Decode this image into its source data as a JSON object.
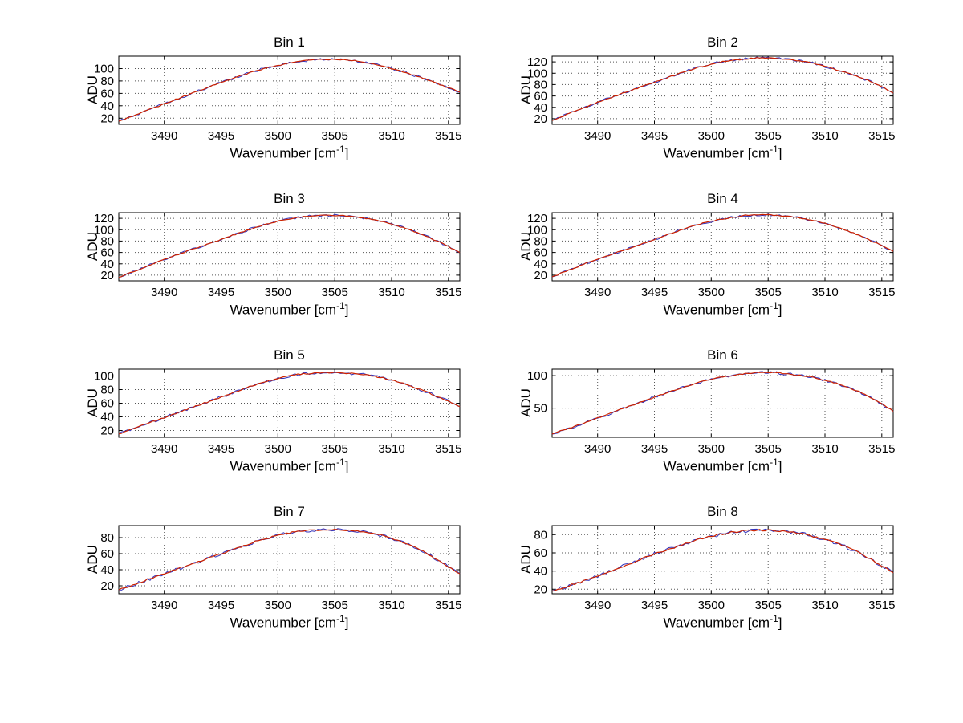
{
  "figure": {
    "background": "#ffffff",
    "ylabel": "ADU",
    "xlabel": {
      "main": "Wavenumber [cm",
      "sup": "-1",
      "end": "]"
    },
    "colors": {
      "data_line": "#3333bb",
      "fit_line": "#cc2200",
      "grid": "#555555",
      "axis": "#000000",
      "text": "#000000"
    },
    "x_values": [
      3486,
      3487,
      3488,
      3489,
      3490,
      3491,
      3492,
      3493,
      3494,
      3495,
      3496,
      3497,
      3498,
      3499,
      3500,
      3501,
      3502,
      3503,
      3504,
      3505,
      3506,
      3507,
      3508,
      3509,
      3510,
      3511,
      3512,
      3513,
      3514,
      3515,
      3516
    ]
  },
  "chart_data": [
    {
      "type": "line",
      "title": "Bin 1",
      "xlabel": "Wavenumber [cm^-1]",
      "ylabel": "ADU",
      "xlim": [
        3486,
        3516
      ],
      "x_ticks": [
        3490,
        3495,
        3500,
        3505,
        3510,
        3515
      ],
      "ylim": [
        10,
        120
      ],
      "y_ticks": [
        20,
        40,
        60,
        80,
        100
      ],
      "grid": true,
      "y": [
        15,
        22,
        29,
        36,
        43,
        50,
        57,
        64,
        71,
        78,
        84,
        90,
        96,
        101,
        105,
        109,
        112,
        114,
        115,
        115,
        114,
        112,
        109,
        105,
        100,
        95,
        89,
        83,
        76,
        69,
        62
      ]
    },
    {
      "type": "line",
      "title": "Bin 2",
      "xlabel": "Wavenumber [cm^-1]",
      "ylabel": "ADU",
      "xlim": [
        3486,
        3516
      ],
      "x_ticks": [
        3490,
        3495,
        3500,
        3505,
        3510,
        3515
      ],
      "ylim": [
        10,
        130
      ],
      "y_ticks": [
        20,
        40,
        60,
        80,
        100,
        120
      ],
      "grid": true,
      "y": [
        17,
        25,
        33,
        41,
        49,
        56,
        63,
        70,
        77,
        84,
        91,
        98,
        105,
        111,
        116,
        120,
        123,
        125,
        127,
        127,
        126,
        124,
        121,
        117,
        112,
        106,
        100,
        93,
        86,
        76,
        65
      ]
    },
    {
      "type": "line",
      "title": "Bin 3",
      "xlabel": "Wavenumber [cm^-1]",
      "ylabel": "ADU",
      "xlim": [
        3486,
        3516
      ],
      "x_ticks": [
        3490,
        3495,
        3500,
        3505,
        3510,
        3515
      ],
      "ylim": [
        10,
        130
      ],
      "y_ticks": [
        20,
        40,
        60,
        80,
        100,
        120
      ],
      "grid": true,
      "y": [
        16,
        24,
        32,
        40,
        48,
        55,
        62,
        69,
        76,
        83,
        90,
        97,
        104,
        110,
        115,
        119,
        122,
        124,
        125,
        125,
        124,
        122,
        119,
        115,
        110,
        104,
        97,
        89,
        80,
        70,
        60
      ]
    },
    {
      "type": "line",
      "title": "Bin 4",
      "xlabel": "Wavenumber [cm^-1]",
      "ylabel": "ADU",
      "xlim": [
        3486,
        3516
      ],
      "x_ticks": [
        3490,
        3495,
        3500,
        3505,
        3510,
        3515
      ],
      "ylim": [
        10,
        130
      ],
      "y_ticks": [
        20,
        40,
        60,
        80,
        100,
        120
      ],
      "grid": true,
      "y": [
        17,
        25,
        33,
        41,
        48,
        55,
        62,
        69,
        76,
        83,
        90,
        97,
        104,
        110,
        115,
        119,
        122,
        125,
        126,
        126,
        125,
        123,
        120,
        116,
        111,
        105,
        98,
        90,
        81,
        72,
        62
      ]
    },
    {
      "type": "line",
      "title": "Bin 5",
      "xlabel": "Wavenumber [cm^-1]",
      "ylabel": "ADU",
      "xlim": [
        3486,
        3516
      ],
      "x_ticks": [
        3490,
        3495,
        3500,
        3505,
        3510,
        3515
      ],
      "ylim": [
        10,
        110
      ],
      "y_ticks": [
        20,
        40,
        60,
        80,
        100
      ],
      "grid": true,
      "y": [
        15,
        21,
        27,
        33,
        39,
        45,
        51,
        57,
        63,
        69,
        75,
        81,
        87,
        92,
        96,
        100,
        103,
        104,
        105,
        105,
        104,
        103,
        101,
        98,
        94,
        89,
        83,
        77,
        70,
        63,
        55
      ]
    },
    {
      "type": "line",
      "title": "Bin 6",
      "xlabel": "Wavenumber [cm^-1]",
      "ylabel": "ADU",
      "xlim": [
        3486,
        3516
      ],
      "x_ticks": [
        3490,
        3495,
        3500,
        3505,
        3510,
        3515
      ],
      "ylim": [
        5,
        110
      ],
      "y_ticks": [
        50,
        100
      ],
      "grid": true,
      "y": [
        10,
        16,
        22,
        28,
        35,
        41,
        48,
        54,
        60,
        67,
        73,
        79,
        85,
        90,
        94,
        98,
        101,
        103,
        105,
        105,
        104,
        102,
        100,
        97,
        93,
        88,
        82,
        75,
        66,
        56,
        45
      ]
    },
    {
      "type": "line",
      "title": "Bin 7",
      "xlabel": "Wavenumber [cm^-1]",
      "ylabel": "ADU",
      "xlim": [
        3486,
        3516
      ],
      "x_ticks": [
        3490,
        3495,
        3500,
        3505,
        3510,
        3515
      ],
      "ylim": [
        10,
        95
      ],
      "y_ticks": [
        20,
        40,
        60,
        80
      ],
      "grid": true,
      "y": [
        15,
        20,
        25,
        30,
        35,
        40,
        45,
        50,
        55,
        60,
        65,
        70,
        75,
        79,
        83,
        86,
        88,
        89,
        90,
        90,
        89,
        88,
        86,
        83,
        79,
        74,
        68,
        61,
        53,
        44,
        35
      ]
    },
    {
      "type": "line",
      "title": "Bin 8",
      "xlabel": "Wavenumber [cm^-1]",
      "ylabel": "ADU",
      "xlim": [
        3486,
        3516
      ],
      "x_ticks": [
        3490,
        3495,
        3500,
        3505,
        3510,
        3515
      ],
      "ylim": [
        15,
        90
      ],
      "y_ticks": [
        20,
        40,
        60,
        80
      ],
      "grid": true,
      "y": [
        18,
        22,
        26,
        30,
        34,
        39,
        44,
        49,
        54,
        59,
        63,
        67,
        71,
        75,
        78,
        81,
        83,
        84,
        85,
        85,
        84,
        83,
        81,
        78,
        75,
        71,
        66,
        60,
        53,
        46,
        38
      ]
    }
  ]
}
